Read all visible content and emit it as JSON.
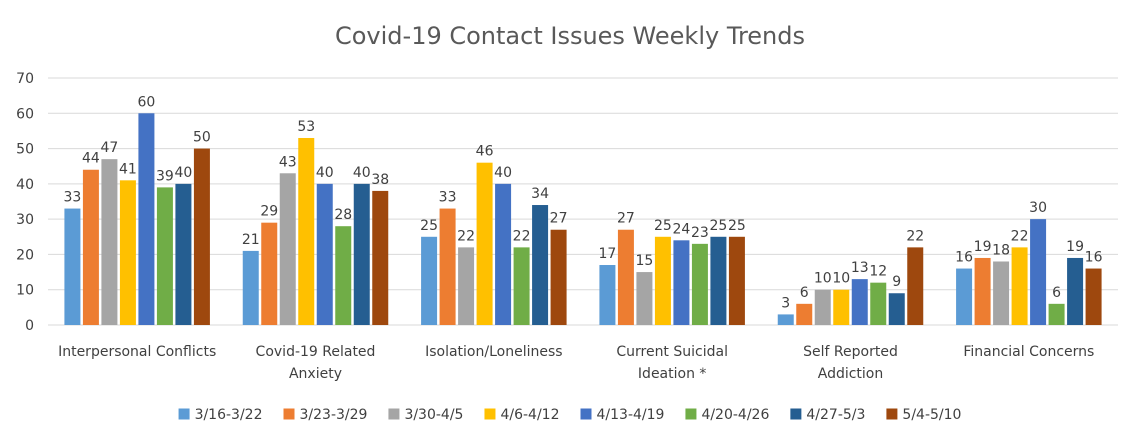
{
  "chart_data": {
    "type": "bar",
    "title": "Covid-19 Contact Issues Weekly Trends",
    "xlabel": "",
    "ylabel": "",
    "ylim": [
      0,
      70
    ],
    "yticks": [
      0,
      10,
      20,
      30,
      40,
      50,
      60,
      70
    ],
    "grid": true,
    "legend_position": "bottom",
    "categories": [
      [
        "Interpersonal Conflicts"
      ],
      [
        "Covid-19 Related",
        "Anxiety"
      ],
      [
        "Isolation/Loneliness"
      ],
      [
        "Current Suicidal",
        "Ideation *"
      ],
      [
        "Self Reported",
        "Addiction"
      ],
      [
        "Financial Concerns"
      ]
    ],
    "series": [
      {
        "name": "3/16-3/22",
        "color": "#5b9bd5",
        "values": [
          33,
          21,
          25,
          17,
          3,
          16
        ]
      },
      {
        "name": "3/23-3/29",
        "color": "#ed7d31",
        "values": [
          44,
          29,
          33,
          27,
          6,
          19
        ]
      },
      {
        "name": "3/30-4/5",
        "color": "#a5a5a5",
        "values": [
          47,
          43,
          22,
          15,
          10,
          18
        ]
      },
      {
        "name": "4/6-4/12",
        "color": "#ffc000",
        "values": [
          41,
          53,
          46,
          25,
          10,
          22
        ]
      },
      {
        "name": "4/13-4/19",
        "color": "#4472c4",
        "values": [
          60,
          40,
          40,
          24,
          13,
          30
        ]
      },
      {
        "name": "4/20-4/26",
        "color": "#70ad47",
        "values": [
          39,
          28,
          22,
          23,
          12,
          6
        ]
      },
      {
        "name": "4/27-5/3",
        "color": "#255e91",
        "values": [
          40,
          40,
          34,
          25,
          9,
          19
        ]
      },
      {
        "name": "5/4-5/10",
        "color": "#9e480e",
        "values": [
          50,
          38,
          27,
          25,
          22,
          16
        ]
      }
    ]
  }
}
